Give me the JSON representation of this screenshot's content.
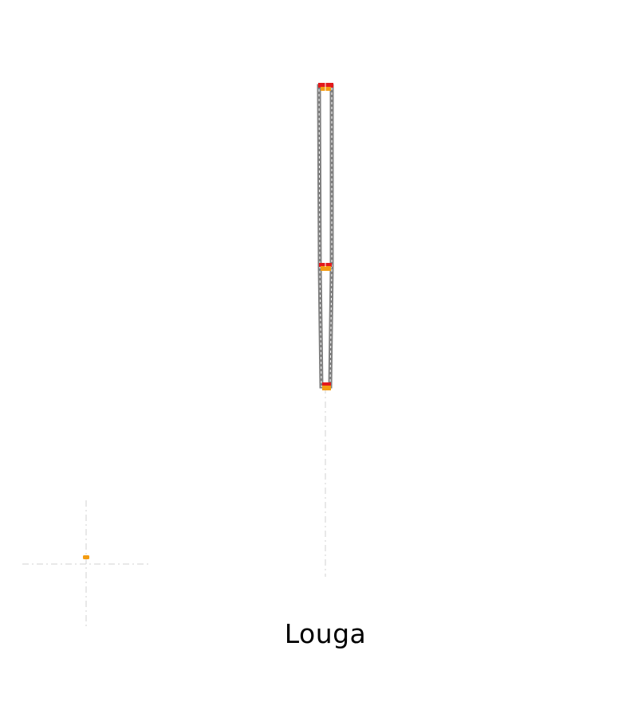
{
  "label": "Louga",
  "colors": {
    "outline": "#808080",
    "marker_red": "#e31a1c",
    "marker_orange": "#f39c12",
    "guide": "#d9d9d9",
    "text": "#000000"
  }
}
